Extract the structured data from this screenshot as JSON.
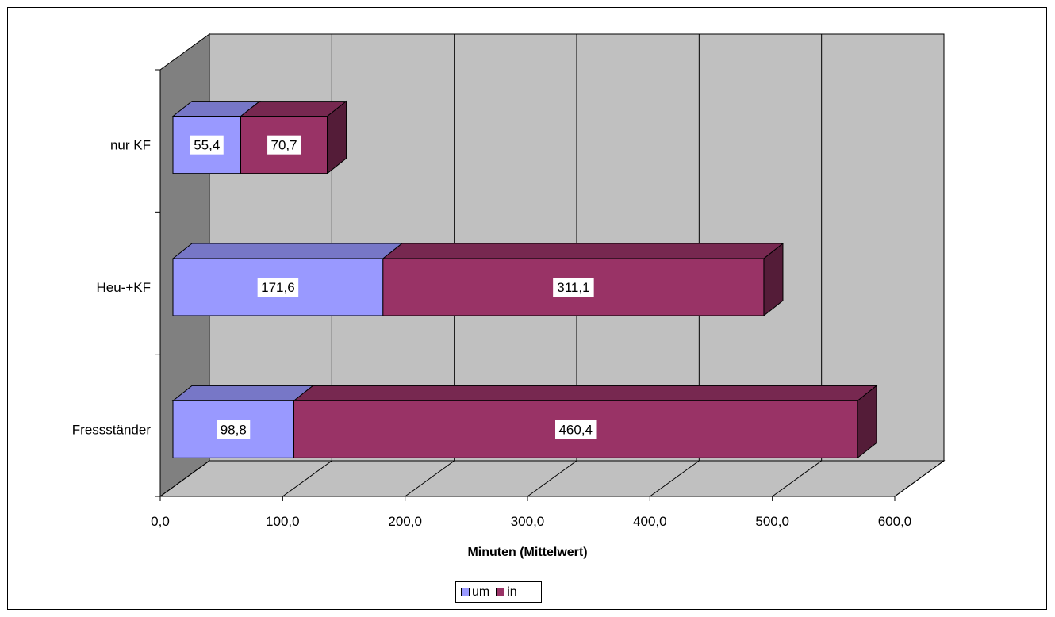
{
  "chart_data": {
    "type": "bar",
    "orientation": "horizontal",
    "stacked": true,
    "style_3d": true,
    "categories": [
      "nur KF",
      "Heu-+KF",
      "Fressständer"
    ],
    "series": [
      {
        "name": "um",
        "values": [
          55.4,
          171.6,
          98.8
        ],
        "labels": [
          "55,4",
          "171,6",
          "98,8"
        ],
        "color": "#9999FF"
      },
      {
        "name": "in",
        "values": [
          70.7,
          311.1,
          460.4
        ],
        "labels": [
          "70,7",
          "311,1",
          "460,4"
        ],
        "color": "#993366"
      }
    ],
    "xlim": [
      0,
      600
    ],
    "x_ticks": [
      0,
      100,
      200,
      300,
      400,
      500,
      600
    ],
    "x_tick_labels": [
      "0,0",
      "100,0",
      "200,0",
      "300,0",
      "400,0",
      "500,0",
      "600,0"
    ],
    "xlabel": "Minuten (Mittelwert)",
    "ylabel": "",
    "grid": true,
    "legend_position": "bottom"
  }
}
